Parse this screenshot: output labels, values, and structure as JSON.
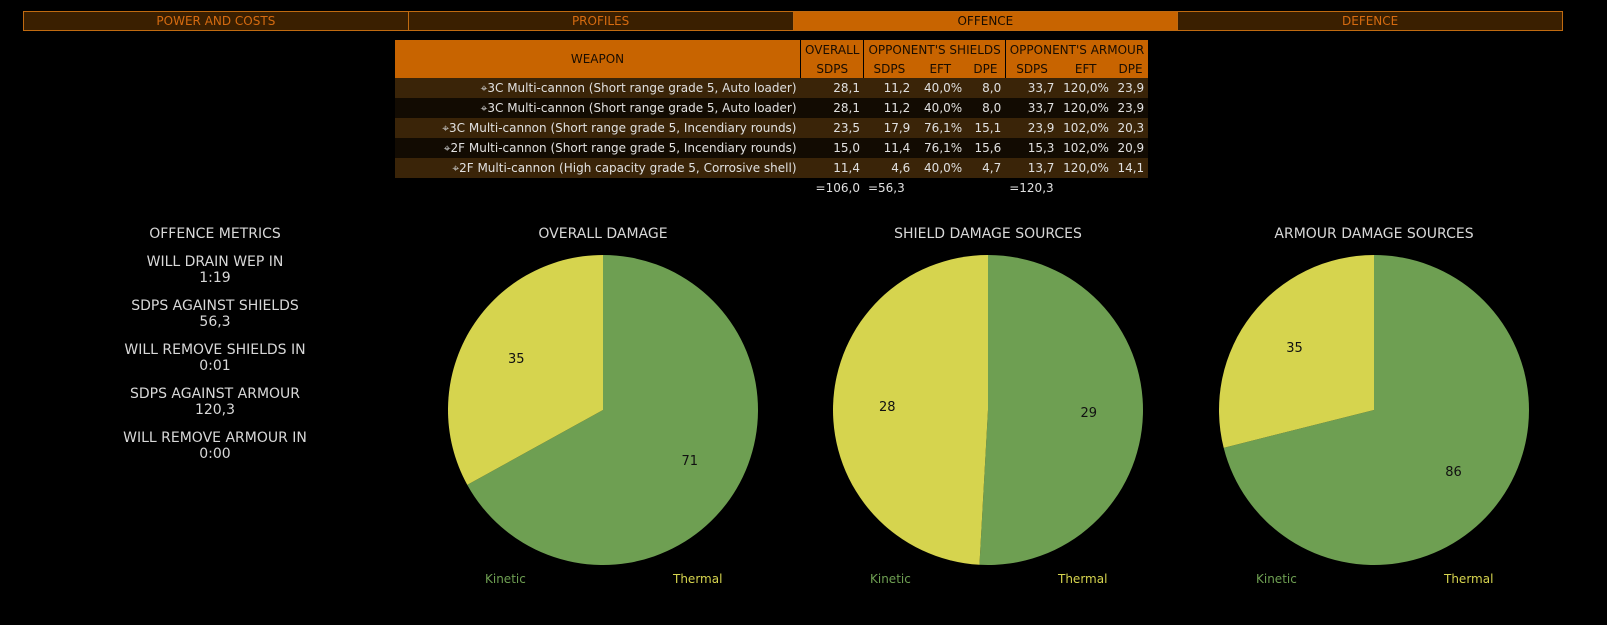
{
  "tabs": [
    "POWER AND COSTS",
    "PROFILES",
    "OFFENCE",
    "DEFENCE"
  ],
  "active_tab": 2,
  "table": {
    "headers": {
      "weapon": "WEAPON",
      "overall": "OVERALL",
      "shields": "OPPONENT'S SHIELDS",
      "armour": "OPPONENT'S ARMOUR",
      "sdps": "SDPS",
      "eft": "EFT",
      "dpe": "DPE"
    },
    "rows": [
      [
        "3C Multi-cannon (Short range grade 5, Auto loader)",
        "28,1",
        "11,2",
        "40,0%",
        "8,0",
        "33,7",
        "120,0%",
        "23,9"
      ],
      [
        "3C Multi-cannon (Short range grade 5, Auto loader)",
        "28,1",
        "11,2",
        "40,0%",
        "8,0",
        "33,7",
        "120,0%",
        "23,9"
      ],
      [
        "3C Multi-cannon (Short range grade 5, Incendiary rounds)",
        "23,5",
        "17,9",
        "76,1%",
        "15,1",
        "23,9",
        "102,0%",
        "20,3"
      ],
      [
        "2F Multi-cannon (Short range grade 5, Incendiary rounds)",
        "15,0",
        "11,4",
        "76,1%",
        "15,6",
        "15,3",
        "102,0%",
        "20,9"
      ],
      [
        "2F Multi-cannon (High capacity grade 5, Corrosive shell)",
        "11,4",
        "4,6",
        "40,0%",
        "4,7",
        "13,7",
        "120,0%",
        "14,1"
      ]
    ],
    "totals": {
      "overall": "=106,0",
      "shields": "=56,3",
      "armour": "=120,3"
    }
  },
  "metrics": {
    "title": "OFFENCE METRICS",
    "items": [
      {
        "label": "WILL DRAIN WEP IN",
        "value": "1:19"
      },
      {
        "label": "SDPS AGAINST SHIELDS",
        "value": "56,3"
      },
      {
        "label": "WILL REMOVE SHIELDS IN",
        "value": "0:01"
      },
      {
        "label": "SDPS AGAINST ARMOUR",
        "value": "120,3"
      },
      {
        "label": "WILL REMOVE ARMOUR IN",
        "value": "0:00"
      }
    ]
  },
  "colors": {
    "kinetic": "#6e9f52",
    "thermal": "#d6d44e"
  },
  "chart_data": [
    {
      "type": "pie",
      "title": "OVERALL DAMAGE",
      "labels": [
        "Kinetic",
        "Thermal"
      ],
      "values": [
        71,
        35
      ]
    },
    {
      "type": "pie",
      "title": "SHIELD DAMAGE SOURCES",
      "labels": [
        "Kinetic",
        "Thermal"
      ],
      "values": [
        29,
        28
      ]
    },
    {
      "type": "pie",
      "title": "ARMOUR DAMAGE SOURCES",
      "labels": [
        "Kinetic",
        "Thermal"
      ],
      "values": [
        86,
        35
      ]
    }
  ]
}
